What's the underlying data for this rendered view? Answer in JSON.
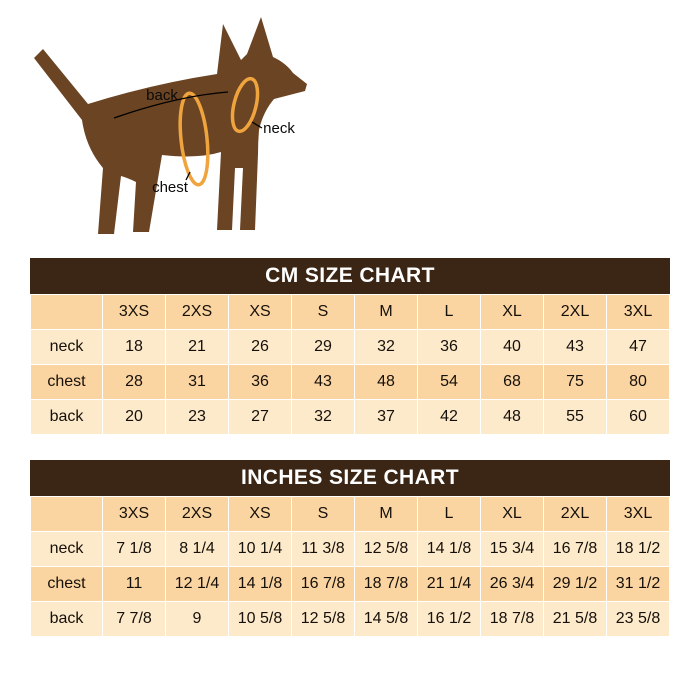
{
  "diagram": {
    "dog_color": "#6b4423",
    "measure_color": "#f0a43e",
    "labels": {
      "back": "back",
      "neck": "neck",
      "chest": "chest"
    }
  },
  "chart_data": [
    {
      "type": "table",
      "title": "CM SIZE CHART",
      "columns": [
        "",
        "3XS",
        "2XS",
        "XS",
        "S",
        "M",
        "L",
        "XL",
        "2XL",
        "3XL"
      ],
      "rows": [
        [
          "neck",
          "18",
          "21",
          "26",
          "29",
          "32",
          "36",
          "40",
          "43",
          "47"
        ],
        [
          "chest",
          "28",
          "31",
          "36",
          "43",
          "48",
          "54",
          "68",
          "75",
          "80"
        ],
        [
          "back",
          "20",
          "23",
          "27",
          "32",
          "37",
          "42",
          "48",
          "55",
          "60"
        ]
      ]
    },
    {
      "type": "table",
      "title": "INCHES SIZE CHART",
      "columns": [
        "",
        "3XS",
        "2XS",
        "XS",
        "S",
        "M",
        "L",
        "XL",
        "2XL",
        "3XL"
      ],
      "rows": [
        [
          "neck",
          "7 1/8",
          "8 1/4",
          "10 1/4",
          "11 3/8",
          "12 5/8",
          "14 1/8",
          "15 3/4",
          "16 7/8",
          "18 1/2"
        ],
        [
          "chest",
          "11",
          "12 1/4",
          "14 1/8",
          "16 7/8",
          "18 7/8",
          "21 1/4",
          "26 3/4",
          "29 1/2",
          "31 1/2"
        ],
        [
          "back",
          "7 7/8",
          "9",
          "10 5/8",
          "12 5/8",
          "14 5/8",
          "16 1/2",
          "18 7/8",
          "21 5/8",
          "23 5/8"
        ]
      ]
    }
  ]
}
